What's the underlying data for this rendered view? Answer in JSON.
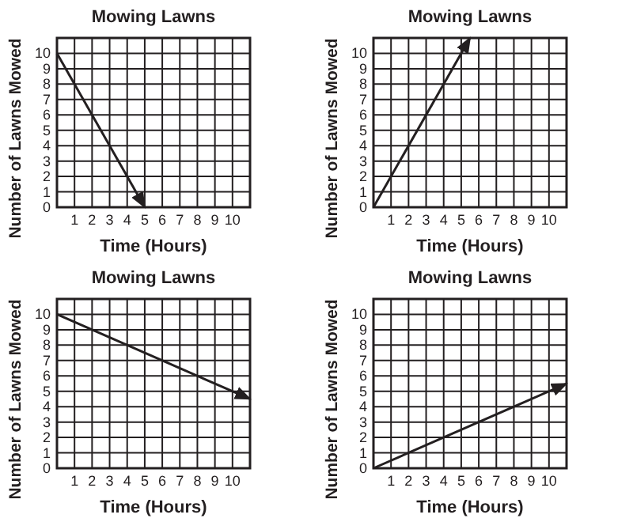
{
  "chart_data": [
    {
      "type": "line",
      "title": "Mowing Lawns",
      "xlabel": "Time (Hours)",
      "ylabel": "Number of Lawns Mowed",
      "xlim": [
        0,
        11
      ],
      "ylim": [
        0,
        11
      ],
      "xticks": [
        1,
        2,
        3,
        4,
        5,
        6,
        7,
        8,
        9,
        10
      ],
      "yticks": [
        0,
        1,
        2,
        3,
        4,
        5,
        6,
        7,
        8,
        9,
        10
      ],
      "grid": true,
      "marker": "none",
      "line_style": "solid",
      "x": [
        0,
        5
      ],
      "series": [
        {
          "color": "#231f20",
          "values": [
            10,
            0
          ]
        }
      ]
    },
    {
      "type": "line",
      "title": "Mowing Lawns",
      "xlabel": "Time (Hours)",
      "ylabel": "Number of Lawns Mowed",
      "xlim": [
        0,
        11
      ],
      "ylim": [
        0,
        11
      ],
      "xticks": [
        1,
        2,
        3,
        4,
        5,
        6,
        7,
        8,
        9,
        10
      ],
      "yticks": [
        0,
        1,
        2,
        3,
        4,
        5,
        6,
        7,
        8,
        9,
        10
      ],
      "grid": true,
      "marker": "none",
      "line_style": "solid",
      "x": [
        0,
        5.5
      ],
      "series": [
        {
          "color": "#231f20",
          "values": [
            0,
            11
          ]
        }
      ]
    },
    {
      "type": "line",
      "title": "Mowing Lawns",
      "xlabel": "Time (Hours)",
      "ylabel": "Number of Lawns Mowed",
      "xlim": [
        0,
        11
      ],
      "ylim": [
        0,
        11
      ],
      "xticks": [
        1,
        2,
        3,
        4,
        5,
        6,
        7,
        8,
        9,
        10
      ],
      "yticks": [
        0,
        1,
        2,
        3,
        4,
        5,
        6,
        7,
        8,
        9,
        10
      ],
      "grid": true,
      "marker": "none",
      "line_style": "solid",
      "x": [
        0,
        11
      ],
      "series": [
        {
          "color": "#231f20",
          "values": [
            10,
            4.5
          ]
        }
      ]
    },
    {
      "type": "line",
      "title": "Mowing Lawns",
      "xlabel": "Time (Hours)",
      "ylabel": "Number of Lawns Mowed",
      "xlim": [
        0,
        11
      ],
      "ylim": [
        0,
        11
      ],
      "xticks": [
        1,
        2,
        3,
        4,
        5,
        6,
        7,
        8,
        9,
        10
      ],
      "yticks": [
        0,
        1,
        2,
        3,
        4,
        5,
        6,
        7,
        8,
        9,
        10
      ],
      "grid": true,
      "marker": "none",
      "line_style": "solid",
      "x": [
        0,
        11
      ],
      "series": [
        {
          "color": "#231f20",
          "values": [
            0,
            5.5
          ]
        }
      ]
    }
  ]
}
